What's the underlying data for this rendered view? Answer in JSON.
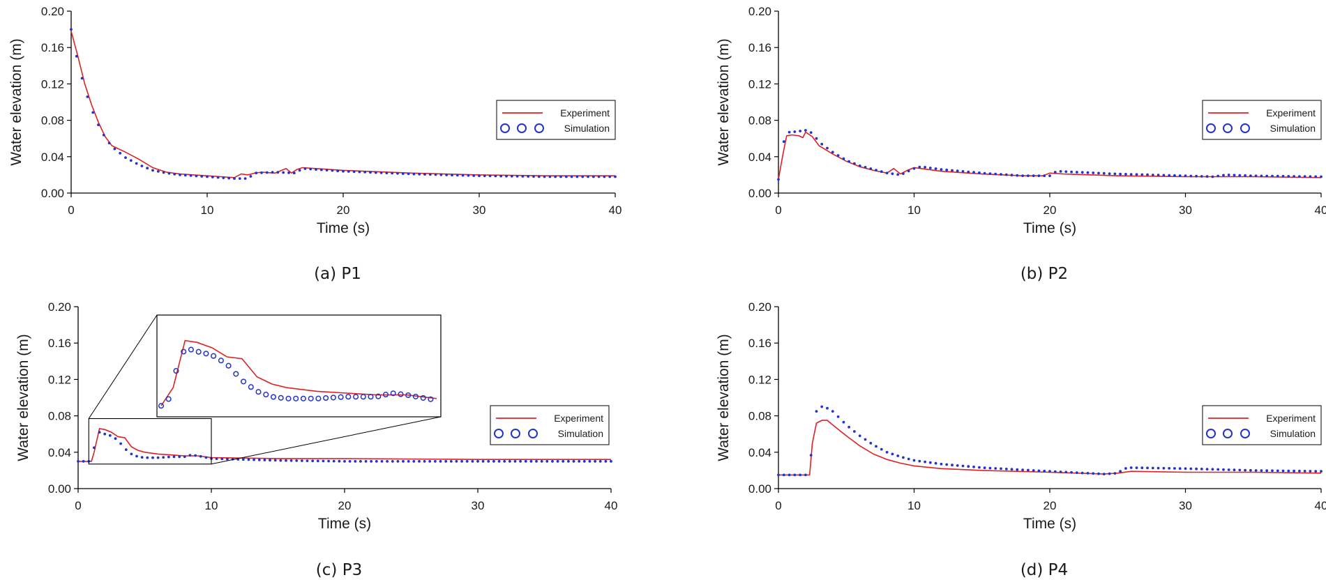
{
  "chart_data": [
    {
      "type": "line",
      "caption": "(a) P1",
      "xlabel": "Time (s)",
      "ylabel": "Water elevation (m)",
      "xlim": [
        0,
        40
      ],
      "ylim": [
        0,
        0.2
      ],
      "x_ticks": [
        "0",
        "10",
        "20",
        "30",
        "40"
      ],
      "y_ticks": [
        "0.00",
        "0.04",
        "0.08",
        "0.12",
        "0.16",
        "0.20"
      ],
      "legend": "right",
      "series": [
        {
          "name": "Experiment",
          "style": "line",
          "color": "#e02020",
          "x": [
            0,
            0.5,
            1,
            1.5,
            2,
            2.5,
            3,
            4,
            5,
            6,
            7,
            8,
            9,
            10,
            11,
            12,
            12.5,
            13,
            13.5,
            14,
            15,
            15.8,
            16.2,
            16.6,
            17,
            18,
            20,
            25,
            30,
            35,
            40
          ],
          "y": [
            0.178,
            0.15,
            0.12,
            0.097,
            0.078,
            0.062,
            0.052,
            0.045,
            0.037,
            0.028,
            0.023,
            0.021,
            0.02,
            0.019,
            0.018,
            0.017,
            0.021,
            0.02,
            0.022,
            0.023,
            0.022,
            0.027,
            0.022,
            0.026,
            0.028,
            0.027,
            0.025,
            0.022,
            0.02,
            0.019,
            0.019
          ]
        },
        {
          "name": "Simulation",
          "style": "markers",
          "color": "#2233cc",
          "x": [
            0,
            0.5,
            1,
            1.5,
            2,
            2.5,
            3,
            4,
            5,
            6,
            7,
            8,
            9,
            10,
            11,
            12,
            13,
            13.5,
            15,
            16.5,
            17,
            18,
            20,
            25,
            30,
            35,
            40
          ],
          "y": [
            0.18,
            0.143,
            0.115,
            0.092,
            0.075,
            0.061,
            0.051,
            0.039,
            0.031,
            0.025,
            0.022,
            0.02,
            0.019,
            0.018,
            0.017,
            0.016,
            0.016,
            0.022,
            0.023,
            0.022,
            0.027,
            0.026,
            0.024,
            0.021,
            0.019,
            0.018,
            0.018
          ]
        }
      ]
    },
    {
      "type": "line",
      "caption": "(b) P2",
      "xlabel": "Time (s)",
      "ylabel": "Water elevation (m)",
      "xlim": [
        0,
        40
      ],
      "ylim": [
        0,
        0.2
      ],
      "x_ticks": [
        "0",
        "10",
        "20",
        "30",
        "40"
      ],
      "y_ticks": [
        "0.00",
        "0.04",
        "0.08",
        "0.12",
        "0.16",
        "0.20"
      ],
      "legend": "right",
      "series": [
        {
          "name": "Experiment",
          "style": "line",
          "color": "#e02020",
          "x": [
            0,
            0.3,
            0.6,
            1,
            1.5,
            1.8,
            2,
            2.5,
            3,
            4,
            5,
            6,
            7,
            8,
            8.5,
            9,
            9.5,
            10,
            11,
            12,
            15,
            18,
            19.5,
            20,
            21,
            25,
            30,
            35,
            40
          ],
          "y": [
            0.015,
            0.04,
            0.063,
            0.064,
            0.063,
            0.061,
            0.067,
            0.062,
            0.052,
            0.043,
            0.035,
            0.029,
            0.025,
            0.022,
            0.027,
            0.021,
            0.025,
            0.028,
            0.026,
            0.024,
            0.021,
            0.019,
            0.019,
            0.022,
            0.021,
            0.019,
            0.018,
            0.018,
            0.017
          ]
        },
        {
          "name": "Simulation",
          "style": "markers",
          "color": "#2233cc",
          "x": [
            0,
            0.5,
            1,
            1.5,
            2,
            2.5,
            3,
            4,
            5,
            6,
            7,
            8,
            9,
            10,
            10.5,
            12,
            15,
            18,
            20,
            20.5,
            22,
            25,
            30,
            32,
            33,
            35,
            40
          ],
          "y": [
            0.015,
            0.067,
            0.067,
            0.068,
            0.069,
            0.066,
            0.056,
            0.045,
            0.036,
            0.03,
            0.026,
            0.022,
            0.02,
            0.027,
            0.029,
            0.026,
            0.022,
            0.019,
            0.019,
            0.024,
            0.023,
            0.021,
            0.019,
            0.018,
            0.02,
            0.019,
            0.018
          ]
        }
      ]
    },
    {
      "type": "line",
      "caption": "(c) P3",
      "xlabel": "Time (s)",
      "ylabel": "Water elevation (m)",
      "xlim": [
        0,
        40
      ],
      "ylim": [
        0,
        0.2
      ],
      "x_ticks": [
        "0",
        "10",
        "20",
        "30",
        "40"
      ],
      "y_ticks": [
        "0.00",
        "0.04",
        "0.08",
        "0.12",
        "0.16",
        "0.20"
      ],
      "legend": "right",
      "inset": "zoom of 1–10 s",
      "series": [
        {
          "name": "Experiment",
          "style": "line",
          "color": "#e02020",
          "x": [
            0,
            1,
            1.2,
            1.6,
            2,
            2.5,
            3,
            3.5,
            4,
            4.5,
            5,
            6,
            7,
            8,
            9,
            10,
            15,
            20,
            30,
            40
          ],
          "y": [
            0.03,
            0.03,
            0.04,
            0.066,
            0.065,
            0.062,
            0.057,
            0.056,
            0.046,
            0.042,
            0.04,
            0.038,
            0.037,
            0.036,
            0.036,
            0.034,
            0.033,
            0.033,
            0.032,
            0.032
          ]
        },
        {
          "name": "Simulation",
          "style": "markers",
          "color": "#2233cc",
          "x": [
            0,
            1,
            1.2,
            1.6,
            2,
            2.5,
            3,
            3.5,
            4,
            4.5,
            5,
            6,
            7,
            8,
            8.5,
            9,
            10,
            15,
            20,
            30,
            40
          ],
          "y": [
            0.03,
            0.03,
            0.045,
            0.062,
            0.06,
            0.058,
            0.053,
            0.044,
            0.038,
            0.035,
            0.034,
            0.034,
            0.035,
            0.035,
            0.037,
            0.036,
            0.033,
            0.031,
            0.03,
            0.03,
            0.03
          ]
        }
      ]
    },
    {
      "type": "line",
      "caption": "(d) P4",
      "xlabel": "Time (s)",
      "ylabel": "Water elevation (m)",
      "xlim": [
        0,
        40
      ],
      "ylim": [
        0,
        0.2
      ],
      "x_ticks": [
        "0",
        "10",
        "20",
        "30",
        "40"
      ],
      "y_ticks": [
        "0.00",
        "0.04",
        "0.08",
        "0.12",
        "0.16",
        "0.20"
      ],
      "legend": "right",
      "series": [
        {
          "name": "Experiment",
          "style": "line",
          "color": "#e02020",
          "x": [
            0,
            2.3,
            2.5,
            2.8,
            3.2,
            3.6,
            4,
            5,
            6,
            7,
            8,
            9,
            10,
            12,
            15,
            20,
            24,
            25,
            26,
            30,
            35,
            40
          ],
          "y": [
            0.015,
            0.015,
            0.05,
            0.072,
            0.075,
            0.075,
            0.07,
            0.058,
            0.047,
            0.038,
            0.032,
            0.028,
            0.025,
            0.022,
            0.02,
            0.018,
            0.016,
            0.017,
            0.019,
            0.018,
            0.018,
            0.017
          ]
        },
        {
          "name": "Simulation",
          "style": "markers",
          "color": "#2233cc",
          "x": [
            0,
            2.3,
            2.6,
            3,
            3.4,
            4,
            5,
            6,
            7,
            8,
            9,
            10,
            12,
            15,
            20,
            24,
            25,
            25.5,
            26,
            30,
            35,
            40
          ],
          "y": [
            0.015,
            0.015,
            0.08,
            0.09,
            0.09,
            0.085,
            0.07,
            0.058,
            0.048,
            0.04,
            0.035,
            0.031,
            0.027,
            0.023,
            0.019,
            0.016,
            0.017,
            0.022,
            0.023,
            0.022,
            0.02,
            0.019
          ]
        }
      ]
    }
  ]
}
